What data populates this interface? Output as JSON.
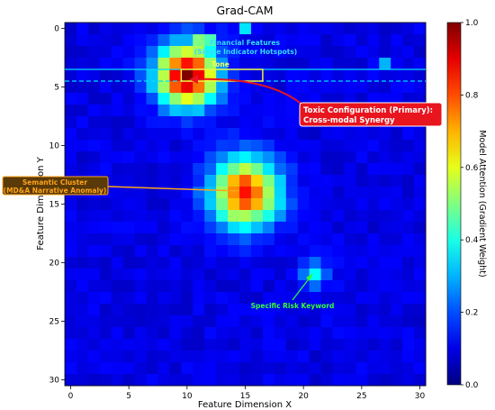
{
  "chart_data": {
    "type": "heatmap",
    "title": "Grad-CAM",
    "xlabel": "Feature Dimension X",
    "ylabel": "Feature Dimension Y",
    "grid_size": 31,
    "xlim": [
      -0.5,
      30.5
    ],
    "ylim": [
      30.5,
      -0.5
    ],
    "x_ticks": [
      "0",
      "5",
      "10",
      "15",
      "20",
      "25",
      "30"
    ],
    "y_ticks": [
      "0",
      "5",
      "10",
      "15",
      "20",
      "25",
      "30"
    ],
    "tick_values": [
      0,
      5,
      10,
      15,
      20,
      25,
      30
    ],
    "colormap": "jet",
    "colorbar": {
      "label": "Model Attention (Gradient Weight)",
      "range": [
        0.0,
        1.0
      ],
      "ticks": [
        "0.0",
        "0.2",
        "0.4",
        "0.6",
        "0.8",
        "1.0"
      ],
      "tick_values": [
        0.0,
        0.2,
        0.4,
        0.6,
        0.8,
        1.0
      ]
    },
    "background_level": 0.1,
    "hotspots": [
      {
        "x": 10,
        "y": 4,
        "peak": 0.9,
        "spread": 1.8
      },
      {
        "x": 15,
        "y": 14,
        "peak": 0.75,
        "spread": 2.0
      },
      {
        "x": 21,
        "y": 21,
        "peak": 0.28,
        "spread": 0.8
      }
    ],
    "bright_cells": [
      {
        "x": 11,
        "y": 1,
        "value": 0.5
      },
      {
        "x": 12,
        "y": 1,
        "value": 0.45
      },
      {
        "x": 15,
        "y": 0,
        "value": 0.35
      },
      {
        "x": 27,
        "y": 3,
        "value": 0.3
      }
    ],
    "annotations": {
      "financial": {
        "line1": "Financial Features",
        "line2": "(Single Indicator Hotspots)",
        "color": "#33ddff"
      },
      "tone": {
        "label": "Tone",
        "color": "#ffff55"
      },
      "toxic": {
        "line1": "Toxic Configuration (Primary):",
        "line2": "Cross-modal Synergy",
        "color": "#e8141e"
      },
      "semantic": {
        "line1": "Semantic Cluster",
        "line2": "(MD&A Narrative Anomaly)",
        "color": "#ffa31a"
      },
      "keyword": {
        "label": "Specific Risk Keyword",
        "color": "#33ff33"
      }
    },
    "financial_rows": [
      3.5,
      4.5
    ],
    "tone_box": {
      "x0": 9.5,
      "x1": 16.5,
      "y0": 3.5,
      "y1": 4.5
    }
  }
}
